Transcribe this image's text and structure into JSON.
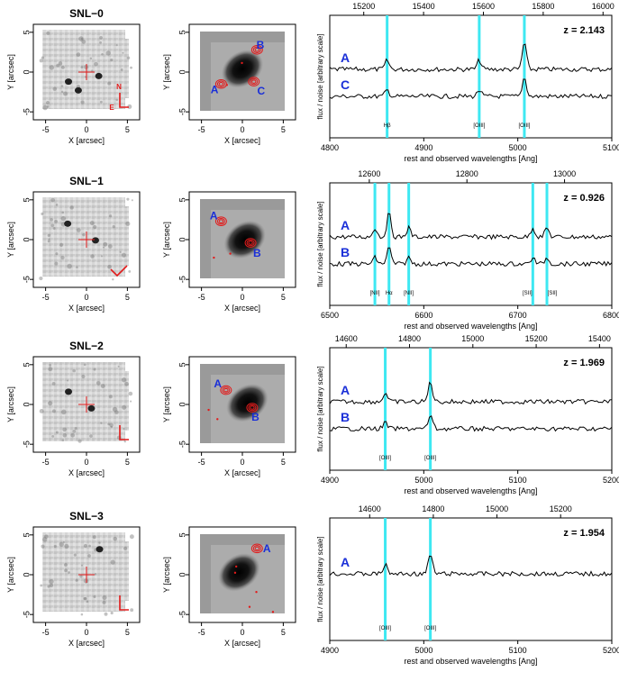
{
  "imaging_axes": {
    "xlabel": "X [arcsec]",
    "ylabel": "Y [arcsec]",
    "xticks": [
      "-5",
      "0",
      "5"
    ],
    "yticks": [
      "5",
      "0",
      "-5"
    ]
  },
  "spectrum_axes": {
    "xlabel": "rest and observed wavelengths [Ang]",
    "ylabel": "flux / noise [arbitrary scale]"
  },
  "colors": {
    "line_marker": "#3ee8f2",
    "contour": "#e21b1b",
    "label": "#1a2fd8",
    "trace": "#000000"
  },
  "compass": {
    "north": "N",
    "east": "E"
  },
  "rows": [
    {
      "title": "SNL−0",
      "image_labels": [
        "A",
        "B",
        "C"
      ],
      "chart_data": {
        "type": "line",
        "redshift": "z = 2.143",
        "rest_range": [
          4800,
          5100
        ],
        "rest_ticks": [
          "4800",
          "4900",
          "5000",
          "5100"
        ],
        "observed_ticks": [
          "15200",
          "15400",
          "15600",
          "15800",
          "16000"
        ],
        "series": [
          {
            "name": "A"
          },
          {
            "name": "C"
          }
        ],
        "lines": [
          {
            "rest": 4861,
            "label": "Hβ"
          },
          {
            "rest": 4959,
            "label": "[OIII]"
          },
          {
            "rest": 5007,
            "label": "[OIII]"
          }
        ]
      }
    },
    {
      "title": "SNL−1",
      "image_labels": [
        "A",
        "B"
      ],
      "chart_data": {
        "type": "line",
        "redshift": "z = 0.926",
        "rest_range": [
          6500,
          6800
        ],
        "rest_ticks": [
          "6500",
          "6600",
          "6700",
          "6800"
        ],
        "observed_ticks": [
          "12600",
          "12800",
          "13000"
        ],
        "series": [
          {
            "name": "A"
          },
          {
            "name": "B"
          }
        ],
        "lines": [
          {
            "rest": 6548,
            "label": "[NII]"
          },
          {
            "rest": 6563,
            "label": "Hα"
          },
          {
            "rest": 6584,
            "label": "[NII]"
          },
          {
            "rest": 6716,
            "label": "[SII]"
          },
          {
            "rest": 6731,
            "label": "[SII]"
          }
        ]
      }
    },
    {
      "title": "SNL−2",
      "image_labels": [
        "A",
        "B"
      ],
      "chart_data": {
        "type": "line",
        "redshift": "z = 1.969",
        "rest_range": [
          4900,
          5200
        ],
        "rest_ticks": [
          "4900",
          "5000",
          "5100",
          "5200"
        ],
        "observed_ticks": [
          "14600",
          "14800",
          "15000",
          "15200",
          "15400"
        ],
        "series": [
          {
            "name": "A"
          },
          {
            "name": "B"
          }
        ],
        "lines": [
          {
            "rest": 4959,
            "label": "[OIII]"
          },
          {
            "rest": 5007,
            "label": "[OIII]"
          }
        ]
      }
    },
    {
      "title": "SNL−3",
      "image_labels": [
        "A"
      ],
      "chart_data": {
        "type": "line",
        "redshift": "z = 1.954",
        "rest_range": [
          4900,
          5200
        ],
        "rest_ticks": [
          "4900",
          "5000",
          "5100",
          "5200"
        ],
        "observed_ticks": [
          "14600",
          "14800",
          "15000",
          "15200"
        ],
        "series": [
          {
            "name": "A"
          }
        ],
        "lines": [
          {
            "rest": 4959,
            "label": "[OIII]"
          },
          {
            "rest": 5007,
            "label": "[OIII]"
          }
        ]
      }
    }
  ]
}
